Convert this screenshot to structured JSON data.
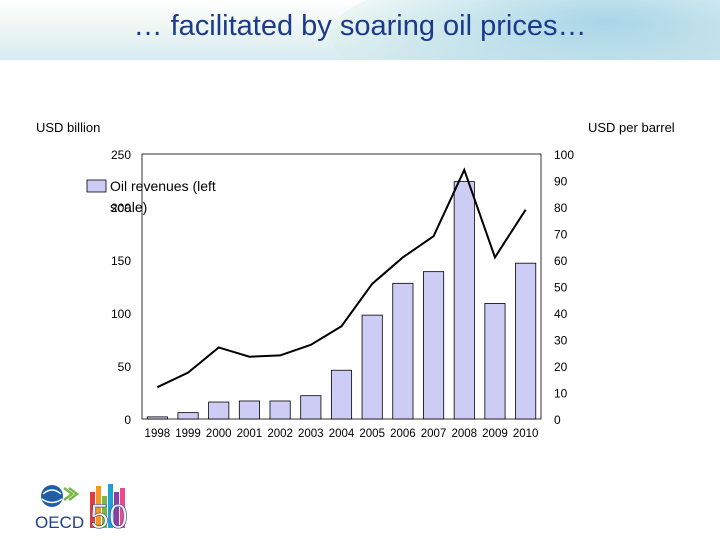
{
  "header": {
    "title": "… facilitated by soaring oil prices…"
  },
  "units": {
    "left": "USD billion",
    "right": "USD per barrel"
  },
  "chart_data": {
    "type": "bar",
    "categories": [
      "1998",
      "1999",
      "2000",
      "2001",
      "2002",
      "2003",
      "2004",
      "2005",
      "2006",
      "2007",
      "2008",
      "2009",
      "2010"
    ],
    "series": [
      {
        "name": "Oil revenues (left scale)",
        "type": "bar",
        "axis": "left",
        "values": [
          2,
          6,
          16,
          17,
          17,
          22,
          46,
          98,
          128,
          139,
          224,
          109,
          147
        ]
      },
      {
        "type": "line",
        "axis": "right",
        "values": [
          12,
          17.5,
          27,
          23.5,
          24,
          28,
          35,
          51,
          61,
          69,
          94,
          61,
          79
        ]
      }
    ],
    "left_axis": {
      "ylim": [
        0,
        250
      ],
      "ticks": [
        "0",
        "50",
        "100",
        "150",
        "200",
        "250"
      ]
    },
    "right_axis": {
      "ylim": [
        0,
        100
      ],
      "ticks": [
        "0",
        "10",
        "20",
        "30",
        "40",
        "50",
        "60",
        "70",
        "80",
        "90",
        "100"
      ]
    },
    "legend": {
      "position": "top-left",
      "label": "Oil revenues (left scale)"
    },
    "colors": {
      "bar_fill": "#ccccf5",
      "bar_stroke": "#000000",
      "line": "#000000"
    },
    "grid": false
  },
  "logo": {
    "text": "OECD",
    "anniversary": "50"
  }
}
